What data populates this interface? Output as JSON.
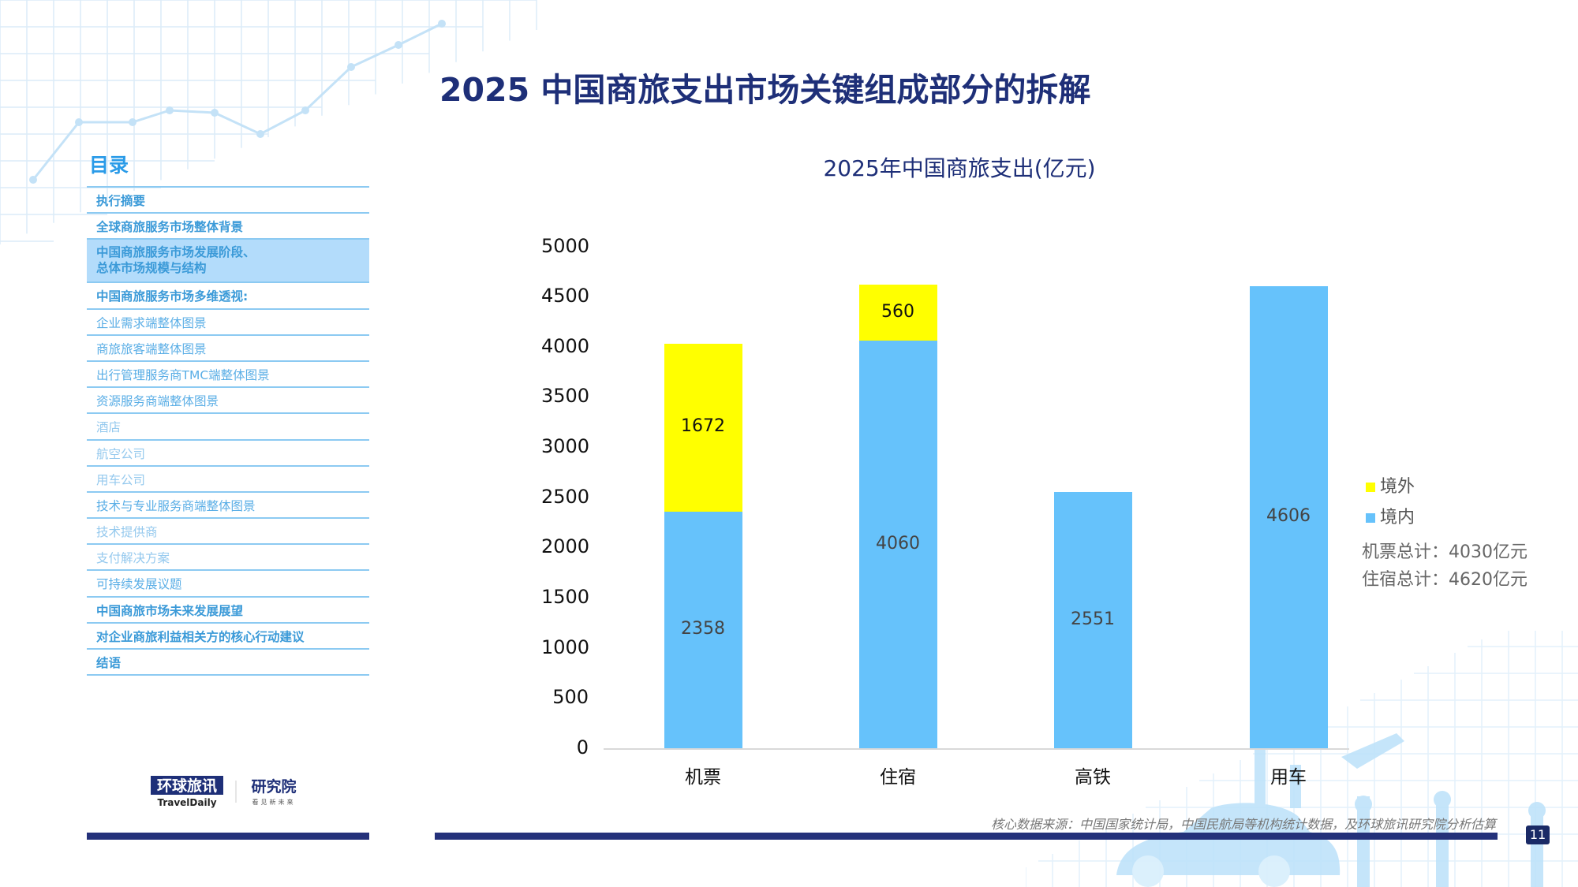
{
  "title": "2025 中国商旅支出市场关键组成部分的拆解",
  "toc": {
    "heading": "目录",
    "items": [
      {
        "label": "执行摘要",
        "style": "b"
      },
      {
        "label": "全球商旅服务市场整体背景",
        "style": "b"
      },
      {
        "label": "中国商旅服务市场发展阶段、",
        "label2": "总体市场规模与结构",
        "style": "b",
        "active": true
      },
      {
        "label": "中国商旅服务市场多维透视:",
        "style": "b"
      },
      {
        "label": "企业需求端整体图景",
        "style": "m"
      },
      {
        "label": "商旅旅客端整体图景",
        "style": "m"
      },
      {
        "label": "出行管理服务商TMC端整体图景",
        "style": "m"
      },
      {
        "label": "资源服务商端整体图景",
        "style": "m"
      },
      {
        "label": "酒店",
        "style": "l"
      },
      {
        "label": "航空公司",
        "style": "l"
      },
      {
        "label": "用车公司",
        "style": "l"
      },
      {
        "label": "技术与专业服务商端整体图景",
        "style": "m"
      },
      {
        "label": "技术提供商",
        "style": "l"
      },
      {
        "label": "支付解决方案",
        "style": "l"
      },
      {
        "label": "可持续发展议题",
        "style": "m"
      },
      {
        "label": "中国商旅市场未来发展展望",
        "style": "b"
      },
      {
        "label": "对企业商旅利益相关方的核心行动建议",
        "style": "b"
      },
      {
        "label": "结语",
        "style": "b"
      }
    ]
  },
  "logo": {
    "brand": "环球旅讯",
    "brand_en": "TravelDaily",
    "unit": "研究院",
    "slogan": "看见新未来"
  },
  "chart_data": {
    "type": "bar",
    "stacked": true,
    "title": "2025年中国商旅支出(亿元)",
    "categories": [
      "机票",
      "住宿",
      "高铁",
      "用车"
    ],
    "series": [
      {
        "name": "境内",
        "color": "#66c2fb",
        "values": [
          2358,
          4060,
          2551,
          4606
        ]
      },
      {
        "name": "境外",
        "color": "#ffff00",
        "values": [
          1672,
          560,
          null,
          null
        ]
      }
    ],
    "ylim": [
      0,
      5000
    ],
    "yticks": [
      "0",
      "500",
      "1000",
      "1500",
      "2000",
      "2500",
      "3000",
      "3500",
      "4000",
      "4500",
      "5000"
    ],
    "legend": "right",
    "grid": false,
    "annotations": [
      "机票总计：4030亿元",
      "住宿总计：4620亿元"
    ]
  },
  "source": "核心数据来源：中国国家统计局，中国民航局等机构统计数据，及环球旅讯研究院分析估算",
  "page_number": "11"
}
